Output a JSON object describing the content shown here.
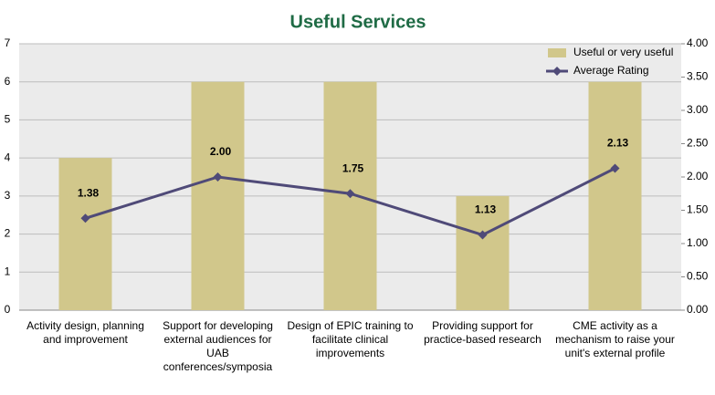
{
  "chart_data": {
    "type": "bar-line",
    "title": "Useful Services",
    "categories": [
      "Activity design, planning and improvement",
      "Support for developing external audiences for UAB conferences/symposia",
      "Design of EPIC training to facilitate clinical improvements",
      "Providing support for practice-based research",
      "CME activity as a mechanism to raise your unit's external profile"
    ],
    "series": [
      {
        "name": "Useful or very useful",
        "type": "bar",
        "color": "#d1c78b",
        "values": [
          4,
          6,
          6,
          3,
          6
        ]
      },
      {
        "name": "Average Rating",
        "type": "line",
        "axis": "y2",
        "color": "#4f4a78",
        "values": [
          1.38,
          2.0,
          1.75,
          1.13,
          2.13
        ],
        "value_labels": [
          "1.38",
          "2.00",
          "1.75",
          "1.13",
          "2.13"
        ]
      }
    ],
    "ylim": [
      0,
      7
    ],
    "yticks": [
      0,
      1,
      2,
      3,
      4,
      5,
      6,
      7
    ],
    "y2lim": [
      0,
      4
    ],
    "y2ticks": [
      {
        "value": 0,
        "label": "0.00"
      },
      {
        "value": 0.5,
        "label": "0.50"
      },
      {
        "value": 1,
        "label": "1.00"
      },
      {
        "value": 1.5,
        "label": "1.50"
      },
      {
        "value": 2,
        "label": "2.00"
      },
      {
        "value": 2.5,
        "label": "2.50"
      },
      {
        "value": 3,
        "label": "3.00"
      },
      {
        "value": 3.5,
        "label": "3.50"
      },
      {
        "value": 4,
        "label": "4.00"
      }
    ],
    "grid": true,
    "legend": "top-right"
  }
}
